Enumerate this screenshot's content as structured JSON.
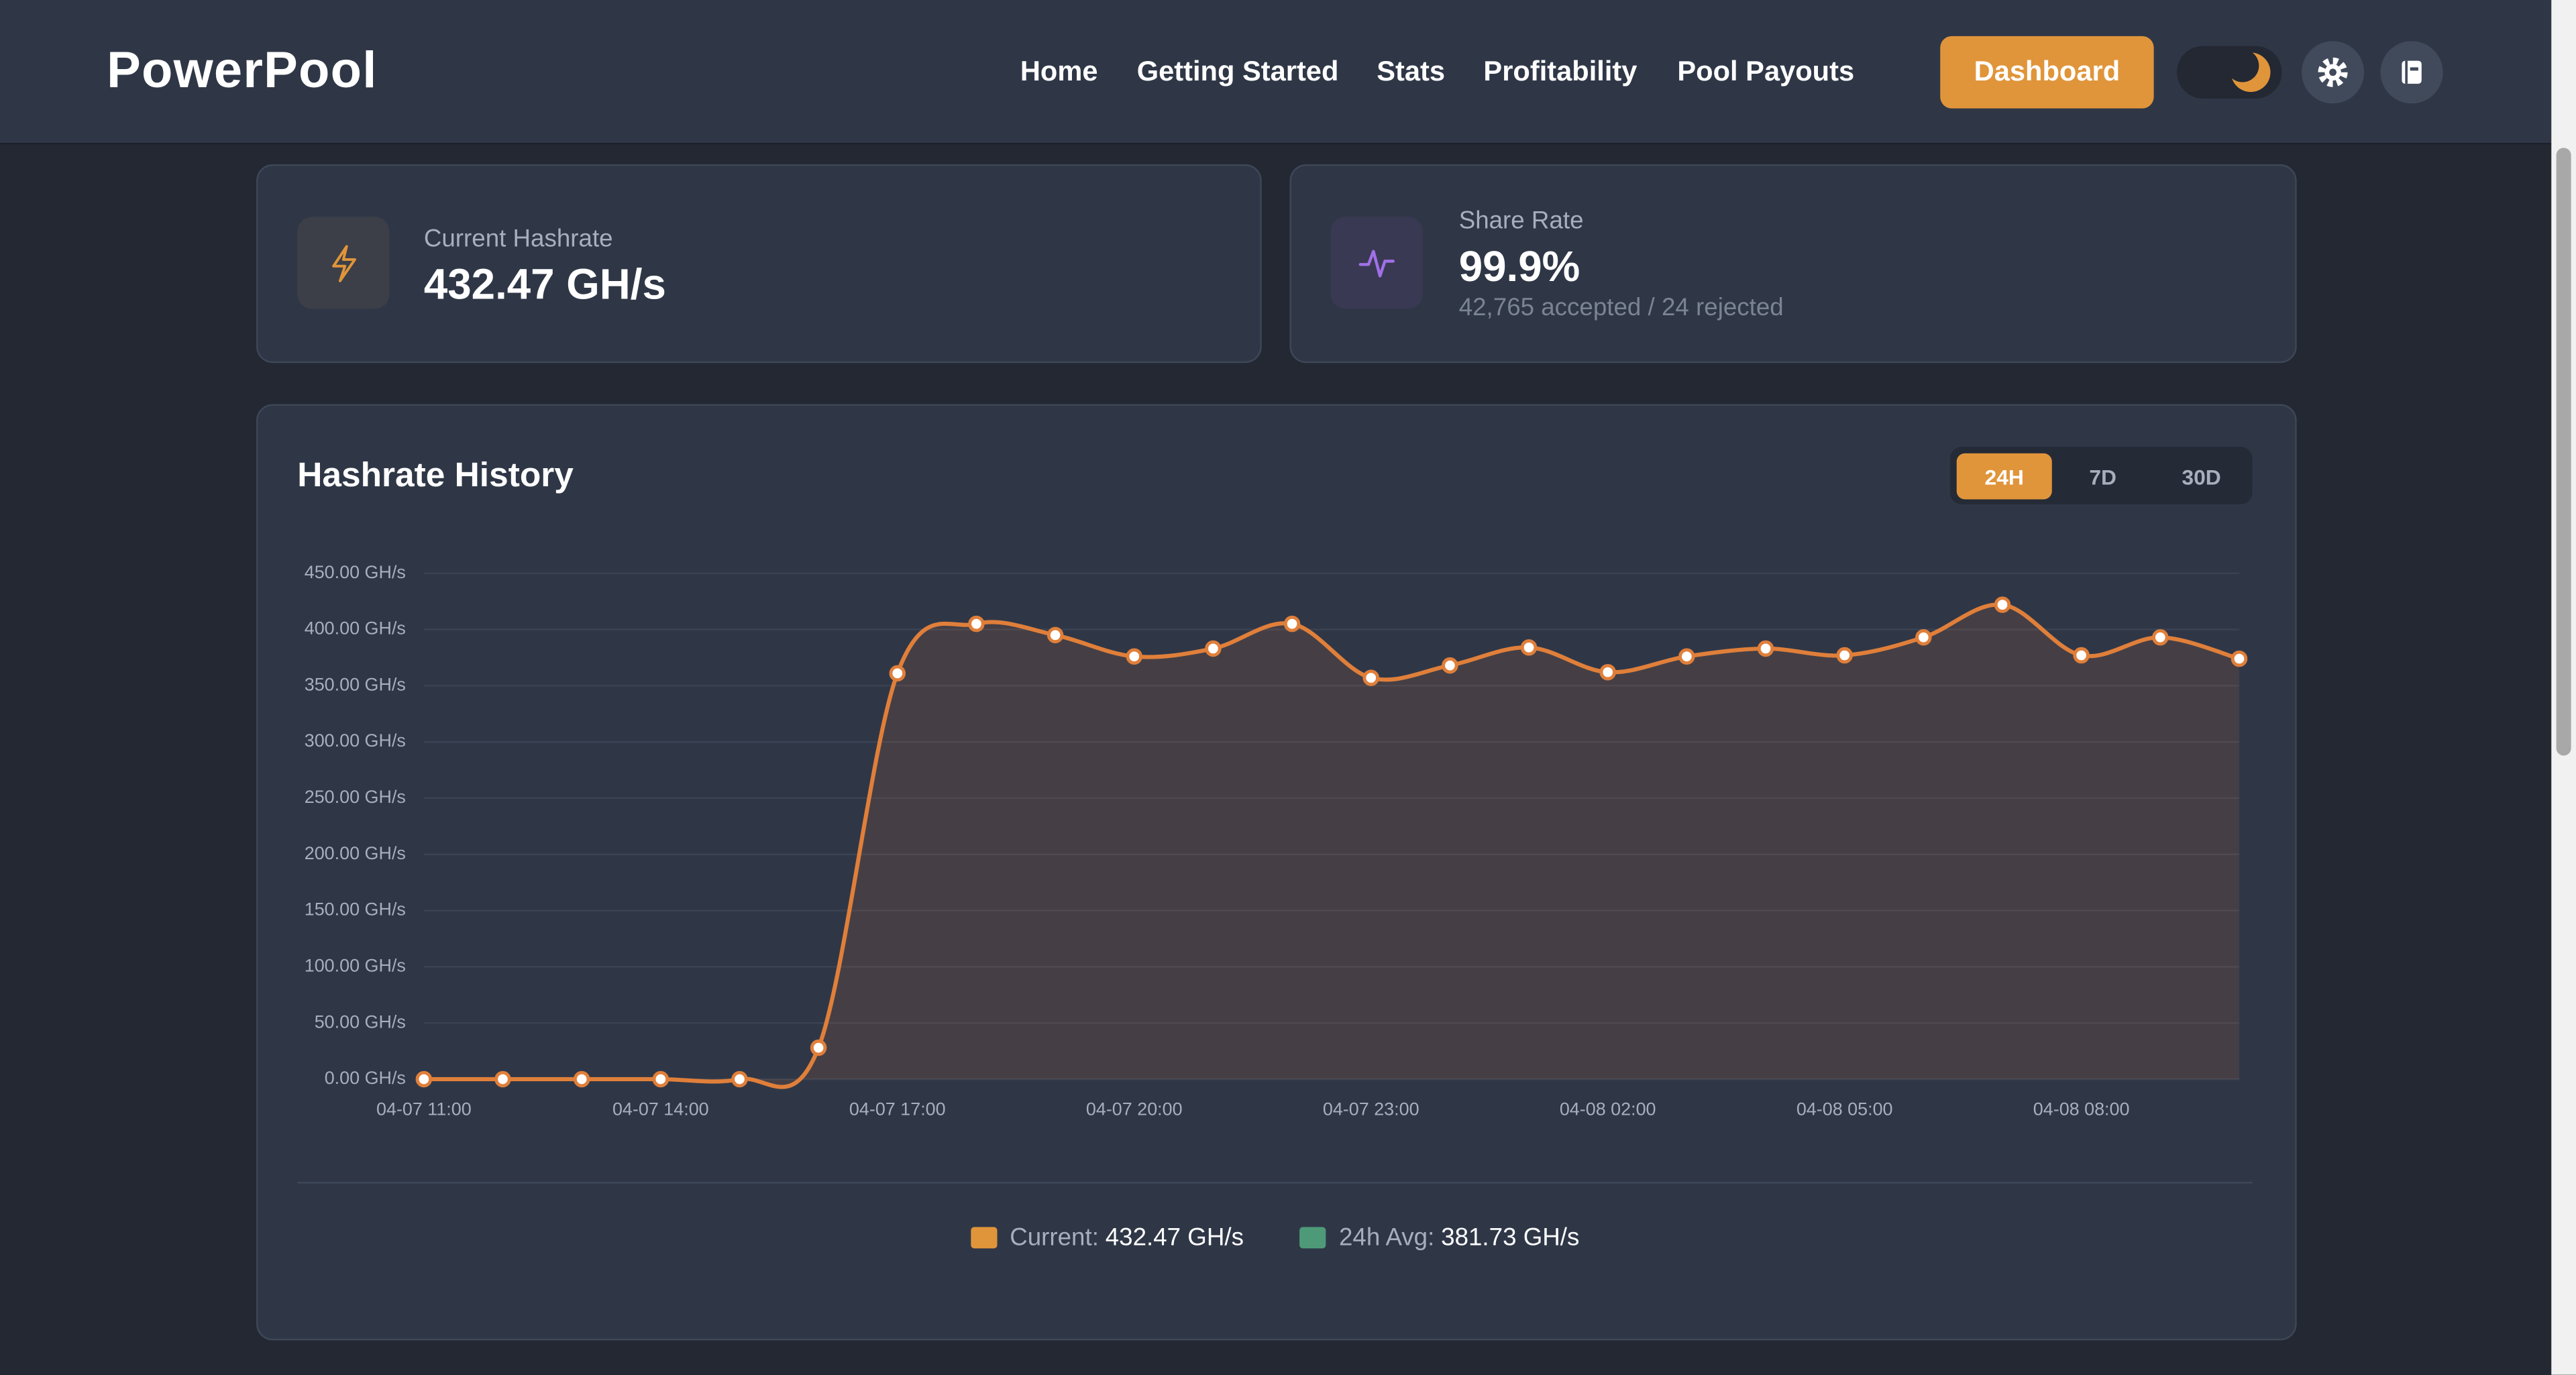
{
  "header": {
    "logo": "PowerPool",
    "nav": [
      "Home",
      "Getting Started",
      "Stats",
      "Profitability",
      "Pool Payouts"
    ],
    "button": "Dashboard"
  },
  "stats": [
    {
      "label": "Current Hashrate",
      "value": "432.47 GH/s"
    },
    {
      "label": "Share Rate",
      "value": "99.9%",
      "detail": "42,765 accepted / 24 rejected"
    }
  ],
  "chart_data": {
    "type": "line",
    "title": "Hashrate History",
    "ranges": [
      "24H",
      "7D",
      "30D"
    ],
    "active_range": "24H",
    "categories": [
      "04-07 11:00",
      null,
      null,
      "04-07 14:00",
      null,
      null,
      "04-07 17:00",
      null,
      null,
      "04-07 20:00",
      null,
      null,
      "04-07 23:00",
      null,
      null,
      "04-08 02:00",
      null,
      null,
      "04-08 05:00",
      null,
      null,
      "04-08 08:00",
      null,
      null
    ],
    "series": [
      {
        "color": "#e07f3a",
        "values": [
          0,
          0,
          0,
          0,
          0,
          28,
          361,
          405,
          395,
          376,
          383,
          405,
          357,
          368,
          384,
          362,
          376,
          383,
          377,
          393,
          422,
          377,
          393,
          374
        ]
      }
    ],
    "ylim": [
      0,
      450
    ],
    "yticks": [
      {
        "value": 0,
        "label": "0.00 GH/s"
      },
      {
        "value": 50,
        "label": "50.00 GH/s"
      },
      {
        "value": 100,
        "label": "100.00 GH/s"
      },
      {
        "value": 150,
        "label": "150.00 GH/s"
      },
      {
        "value": 200,
        "label": "200.00 GH/s"
      },
      {
        "value": 250,
        "label": "250.00 GH/s"
      },
      {
        "value": 300,
        "label": "300.00 GH/s"
      },
      {
        "value": 350,
        "label": "350.00 GH/s"
      },
      {
        "value": 400,
        "label": "400.00 GH/s"
      },
      {
        "value": 450,
        "label": "450.00 GH/s"
      }
    ],
    "grid": true,
    "legend": [
      {
        "label": "Current:",
        "value": "432.47 GH/s",
        "color": "#e0953a"
      },
      {
        "label": "24h Avg:",
        "value": "381.73 GH/s",
        "color": "#4e9a78"
      }
    ]
  }
}
